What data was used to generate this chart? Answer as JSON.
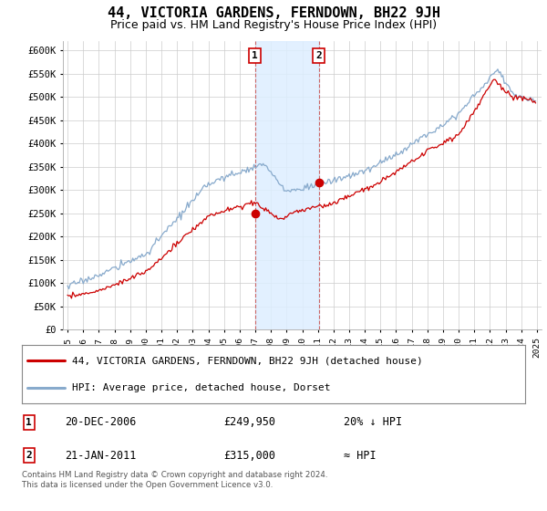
{
  "title": "44, VICTORIA GARDENS, FERNDOWN, BH22 9JH",
  "subtitle": "Price paid vs. HM Land Registry's House Price Index (HPI)",
  "title_fontsize": 11,
  "subtitle_fontsize": 9,
  "ylim": [
    0,
    620000
  ],
  "yticks": [
    0,
    50000,
    100000,
    150000,
    200000,
    250000,
    300000,
    350000,
    400000,
    450000,
    500000,
    550000,
    600000
  ],
  "ytick_labels": [
    "£0",
    "£50K",
    "£100K",
    "£150K",
    "£200K",
    "£250K",
    "£300K",
    "£350K",
    "£400K",
    "£450K",
    "£500K",
    "£550K",
    "£600K"
  ],
  "xlim_start": 1994.7,
  "xlim_end": 2025.3,
  "sale1_year": 2006.97,
  "sale1_price": 249950,
  "sale2_year": 2011.05,
  "sale2_price": 315000,
  "legend_line1": "44, VICTORIA GARDENS, FERNDOWN, BH22 9JH (detached house)",
  "legend_line2": "HPI: Average price, detached house, Dorset",
  "table_row1": [
    "1",
    "20-DEC-2006",
    "£249,950",
    "20% ↓ HPI"
  ],
  "table_row2": [
    "2",
    "21-JAN-2011",
    "£315,000",
    "≈ HPI"
  ],
  "footnote": "Contains HM Land Registry data © Crown copyright and database right 2024.\nThis data is licensed under the Open Government Licence v3.0.",
  "red_color": "#cc0000",
  "blue_color": "#88aacc",
  "dashed_line_color": "#cc6666",
  "marker_box_color": "#cc0000",
  "shade_color": "#ddeeff"
}
